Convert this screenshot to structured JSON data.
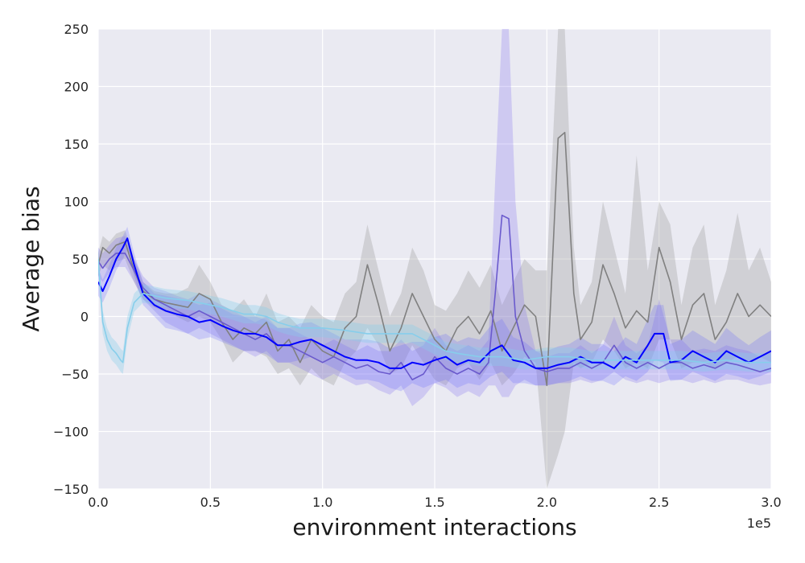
{
  "chart_data": {
    "type": "line",
    "title": "",
    "xlabel": "environment interactions",
    "ylabel": "Average bias",
    "x_offset_label": "1e5",
    "xlim": [
      0,
      3
    ],
    "ylim": [
      -150,
      250
    ],
    "grid": true,
    "background": "#eaeaf2",
    "xticks": [
      {
        "value": 0.0,
        "label": "0.0"
      },
      {
        "value": 0.5,
        "label": "0.5"
      },
      {
        "value": 1.0,
        "label": "1.0"
      },
      {
        "value": 1.5,
        "label": "1.5"
      },
      {
        "value": 2.0,
        "label": "2.0"
      },
      {
        "value": 2.5,
        "label": "2.5"
      },
      {
        "value": 3.0,
        "label": "3.0"
      }
    ],
    "yticks": [
      {
        "value": -150,
        "label": "−150"
      },
      {
        "value": -100,
        "label": "−100"
      },
      {
        "value": -50,
        "label": "−50"
      },
      {
        "value": 0,
        "label": "0"
      },
      {
        "value": 50,
        "label": "50"
      },
      {
        "value": 100,
        "label": "100"
      },
      {
        "value": 150,
        "label": "150"
      },
      {
        "value": 200,
        "label": "200"
      },
      {
        "value": 250,
        "label": "250"
      }
    ],
    "series": [
      {
        "color": "#808080",
        "band_color": "#a9a9a9",
        "band_opacity": 0.4,
        "x": [
          0,
          0.02,
          0.05,
          0.08,
          0.12,
          0.16,
          0.2,
          0.25,
          0.3,
          0.35,
          0.4,
          0.45,
          0.5,
          0.55,
          0.6,
          0.65,
          0.7,
          0.75,
          0.8,
          0.85,
          0.9,
          0.95,
          1.0,
          1.05,
          1.1,
          1.15,
          1.2,
          1.25,
          1.3,
          1.35,
          1.4,
          1.45,
          1.5,
          1.55,
          1.6,
          1.65,
          1.7,
          1.75,
          1.8,
          1.85,
          1.9,
          1.95,
          2.0,
          2.05,
          2.08,
          2.12,
          2.15,
          2.2,
          2.25,
          2.3,
          2.35,
          2.4,
          2.45,
          2.5,
          2.55,
          2.6,
          2.65,
          2.7,
          2.75,
          2.8,
          2.85,
          2.9,
          2.95,
          3.0
        ],
        "y": [
          45,
          60,
          55,
          62,
          65,
          40,
          22,
          15,
          12,
          10,
          8,
          20,
          15,
          -5,
          -20,
          -10,
          -15,
          -5,
          -30,
          -20,
          -40,
          -20,
          -30,
          -35,
          -10,
          0,
          45,
          10,
          -30,
          -10,
          20,
          0,
          -20,
          -30,
          -10,
          0,
          -15,
          5,
          -30,
          -10,
          10,
          0,
          -60,
          155,
          160,
          20,
          -20,
          -5,
          45,
          20,
          -10,
          5,
          -5,
          60,
          30,
          -20,
          10,
          20,
          -20,
          -5,
          20,
          0,
          10,
          0
        ],
        "lower": [
          35,
          45,
          40,
          48,
          50,
          30,
          15,
          8,
          4,
          0,
          -5,
          0,
          -5,
          -20,
          -40,
          -30,
          -30,
          -35,
          -50,
          -45,
          -60,
          -45,
          -55,
          -60,
          -40,
          -30,
          -10,
          -25,
          -50,
          -45,
          -25,
          -40,
          -55,
          -60,
          -45,
          -40,
          -55,
          -40,
          -60,
          -50,
          -35,
          -40,
          -150,
          -120,
          -100,
          -40,
          -45,
          -40,
          -20,
          -30,
          -45,
          -40,
          -45,
          -20,
          -20,
          -45,
          -40,
          -40,
          -45,
          -40,
          -35,
          -40,
          -35,
          -40
        ],
        "upper": [
          55,
          70,
          65,
          72,
          75,
          50,
          30,
          22,
          20,
          20,
          25,
          45,
          30,
          10,
          5,
          15,
          0,
          20,
          -5,
          0,
          -10,
          10,
          0,
          -5,
          20,
          30,
          80,
          40,
          0,
          20,
          60,
          40,
          10,
          5,
          20,
          40,
          25,
          45,
          10,
          30,
          50,
          40,
          40,
          250,
          250,
          60,
          10,
          30,
          100,
          60,
          20,
          140,
          40,
          100,
          80,
          10,
          60,
          80,
          10,
          40,
          90,
          40,
          60,
          30
        ]
      },
      {
        "color": "#6a5acd",
        "band_color": "#7b68ee",
        "band_opacity": 0.25,
        "x": [
          0,
          0.02,
          0.05,
          0.08,
          0.12,
          0.16,
          0.2,
          0.25,
          0.3,
          0.35,
          0.4,
          0.45,
          0.5,
          0.55,
          0.6,
          0.65,
          0.7,
          0.75,
          0.8,
          0.85,
          0.9,
          0.95,
          1.0,
          1.05,
          1.1,
          1.15,
          1.2,
          1.25,
          1.3,
          1.35,
          1.4,
          1.45,
          1.5,
          1.55,
          1.6,
          1.65,
          1.7,
          1.74,
          1.77,
          1.8,
          1.83,
          1.86,
          1.9,
          1.95,
          2.0,
          2.05,
          2.1,
          2.15,
          2.2,
          2.25,
          2.3,
          2.35,
          2.4,
          2.45,
          2.5,
          2.55,
          2.6,
          2.65,
          2.7,
          2.75,
          2.8,
          2.85,
          2.9,
          2.95,
          3.0
        ],
        "y": [
          48,
          42,
          50,
          55,
          55,
          40,
          25,
          15,
          10,
          5,
          0,
          5,
          0,
          -5,
          -10,
          -15,
          -20,
          -15,
          -25,
          -25,
          -30,
          -35,
          -40,
          -35,
          -40,
          -45,
          -42,
          -48,
          -50,
          -40,
          -55,
          -50,
          -35,
          -45,
          -50,
          -45,
          -50,
          -40,
          20,
          88,
          85,
          0,
          -30,
          -45,
          -48,
          -45,
          -45,
          -40,
          -45,
          -40,
          -25,
          -40,
          -45,
          -40,
          -45,
          -40,
          -40,
          -45,
          -42,
          -45,
          -40,
          -42,
          -45,
          -48,
          -45
        ],
        "lower": [
          35,
          30,
          38,
          43,
          43,
          30,
          15,
          5,
          -5,
          -10,
          -15,
          -10,
          -15,
          -20,
          -25,
          -30,
          -35,
          -30,
          -40,
          -40,
          -45,
          -50,
          -55,
          -50,
          -55,
          -60,
          -58,
          -64,
          -68,
          -60,
          -78,
          -70,
          -58,
          -62,
          -70,
          -65,
          -70,
          -60,
          -60,
          -70,
          -70,
          -60,
          -55,
          -60,
          -60,
          -58,
          -58,
          -55,
          -58,
          -55,
          -48,
          -55,
          -58,
          -55,
          -58,
          -55,
          -55,
          -58,
          -55,
          -58,
          -55,
          -55,
          -58,
          -60,
          -58
        ],
        "upper": [
          60,
          55,
          62,
          68,
          70,
          50,
          35,
          25,
          22,
          18,
          15,
          20,
          15,
          10,
          5,
          0,
          -5,
          0,
          -10,
          -10,
          -15,
          -20,
          -25,
          -20,
          -25,
          -30,
          -25,
          -30,
          -30,
          -20,
          -30,
          -25,
          -10,
          -25,
          -30,
          -25,
          -30,
          -20,
          120,
          250,
          250,
          100,
          10,
          -30,
          -35,
          -32,
          -32,
          -25,
          -32,
          -25,
          0,
          -25,
          -32,
          -25,
          15,
          -20,
          -20,
          -30,
          -28,
          -30,
          -25,
          -28,
          -30,
          -35,
          -30
        ]
      },
      {
        "color": "#0000ff",
        "band_color": "#5a5aff",
        "band_opacity": 0.22,
        "x": [
          0,
          0.02,
          0.05,
          0.08,
          0.11,
          0.13,
          0.16,
          0.2,
          0.25,
          0.3,
          0.35,
          0.4,
          0.45,
          0.5,
          0.55,
          0.6,
          0.65,
          0.7,
          0.75,
          0.8,
          0.85,
          0.9,
          0.95,
          1.0,
          1.05,
          1.1,
          1.15,
          1.2,
          1.25,
          1.3,
          1.35,
          1.4,
          1.45,
          1.5,
          1.55,
          1.6,
          1.65,
          1.7,
          1.75,
          1.8,
          1.85,
          1.9,
          1.95,
          2.0,
          2.05,
          2.1,
          2.15,
          2.2,
          2.25,
          2.3,
          2.35,
          2.4,
          2.45,
          2.48,
          2.52,
          2.55,
          2.6,
          2.65,
          2.7,
          2.75,
          2.8,
          2.85,
          2.9,
          2.95,
          3.0
        ],
        "y": [
          30,
          22,
          35,
          50,
          60,
          68,
          45,
          20,
          10,
          5,
          2,
          0,
          -5,
          -3,
          -8,
          -12,
          -15,
          -15,
          -18,
          -25,
          -25,
          -22,
          -20,
          -25,
          -30,
          -35,
          -38,
          -38,
          -40,
          -45,
          -45,
          -40,
          -42,
          -38,
          -35,
          -42,
          -38,
          -40,
          -30,
          -25,
          -38,
          -40,
          -45,
          -45,
          -42,
          -40,
          -35,
          -40,
          -40,
          -45,
          -35,
          -40,
          -25,
          -15,
          -15,
          -40,
          -38,
          -30,
          -35,
          -40,
          -30,
          -35,
          -40,
          -35,
          -30
        ],
        "lower": [
          18,
          12,
          25,
          40,
          50,
          58,
          35,
          10,
          0,
          -10,
          -12,
          -15,
          -20,
          -18,
          -22,
          -26,
          -30,
          -30,
          -33,
          -40,
          -40,
          -38,
          -35,
          -40,
          -45,
          -50,
          -55,
          -55,
          -57,
          -62,
          -65,
          -58,
          -62,
          -58,
          -55,
          -62,
          -58,
          -60,
          -52,
          -48,
          -58,
          -58,
          -60,
          -60,
          -58,
          -56,
          -52,
          -56,
          -56,
          -60,
          -52,
          -56,
          -48,
          -38,
          -40,
          -56,
          -55,
          -48,
          -52,
          -56,
          -50,
          -52,
          -55,
          -52,
          -48
        ],
        "upper": [
          42,
          32,
          45,
          60,
          70,
          78,
          55,
          30,
          20,
          18,
          16,
          14,
          10,
          12,
          7,
          2,
          0,
          0,
          -3,
          -10,
          -10,
          -6,
          -5,
          -10,
          -15,
          -20,
          -20,
          -20,
          -22,
          -28,
          -25,
          -22,
          -22,
          -18,
          -15,
          -22,
          -18,
          -20,
          -8,
          -2,
          -18,
          -22,
          -30,
          -30,
          -26,
          -24,
          -18,
          -24,
          -24,
          -30,
          -18,
          -24,
          -2,
          10,
          10,
          -24,
          -20,
          -12,
          -18,
          -24,
          -10,
          -18,
          -25,
          -18,
          -12
        ]
      },
      {
        "color": "#87ceeb",
        "band_color": "#87ceeb",
        "band_opacity": 0.35,
        "x": [
          0,
          0.02,
          0.04,
          0.06,
          0.08,
          0.1,
          0.11,
          0.13,
          0.16,
          0.2,
          0.25,
          0.3,
          0.35,
          0.4,
          0.45,
          0.5,
          0.55,
          0.6,
          0.65,
          0.7,
          0.75,
          0.8,
          0.85,
          0.9,
          0.95,
          1.0,
          1.1,
          1.2,
          1.3,
          1.4,
          1.45,
          1.5,
          1.55,
          1.6,
          1.7,
          1.8,
          1.9,
          2.0,
          2.1,
          2.2,
          2.3,
          2.4,
          2.5,
          2.6,
          2.7,
          2.8,
          2.9,
          3.0
        ],
        "y": [
          50,
          -5,
          -20,
          -28,
          -32,
          -38,
          -40,
          -10,
          12,
          20,
          18,
          16,
          15,
          14,
          12,
          10,
          8,
          5,
          2,
          2,
          0,
          -5,
          -8,
          -10,
          -10,
          -10,
          -12,
          -15,
          -15,
          -15,
          -20,
          -25,
          -30,
          -32,
          -35,
          -35,
          -38,
          -35,
          -35,
          -38,
          -38,
          -38,
          -38,
          -38,
          -40,
          -38,
          -40,
          -40
        ],
        "lower": [
          40,
          -15,
          -30,
          -38,
          -42,
          -48,
          -50,
          -20,
          4,
          12,
          10,
          8,
          7,
          6,
          4,
          2,
          0,
          -3,
          -6,
          -6,
          -8,
          -13,
          -16,
          -18,
          -18,
          -18,
          -20,
          -23,
          -23,
          -23,
          -28,
          -33,
          -38,
          -40,
          -43,
          -43,
          -46,
          -43,
          -43,
          -46,
          -46,
          -46,
          -46,
          -46,
          -48,
          -46,
          -48,
          -48
        ],
        "upper": [
          60,
          5,
          -10,
          -18,
          -22,
          -28,
          -30,
          0,
          20,
          28,
          26,
          24,
          23,
          22,
          20,
          18,
          16,
          13,
          10,
          10,
          8,
          3,
          0,
          -2,
          -2,
          -2,
          -4,
          -7,
          -7,
          -7,
          -12,
          -17,
          -22,
          -24,
          -27,
          -27,
          -30,
          -27,
          -27,
          -30,
          -30,
          -30,
          -30,
          -30,
          -32,
          -30,
          -32,
          -32
        ]
      }
    ]
  }
}
